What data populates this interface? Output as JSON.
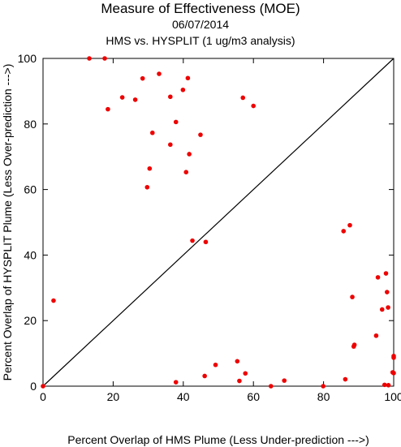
{
  "chart_data": {
    "type": "scatter",
    "title": "Measure of Effectiveness (MOE)",
    "subtitle": "06/07/2014",
    "subtitle2": "HMS vs. HYSPLIT  (1 ug/m3 analysis)",
    "xlabel": "Percent Overlap of HMS Plume (Less Under-prediction --->)",
    "ylabel": "Percent Overlap of HYSPLIT Plume (Less Over-prediction --->)",
    "xlim": [
      0,
      100
    ],
    "ylim": [
      0,
      100
    ],
    "xticks": [
      "0",
      "20",
      "40",
      "60",
      "80",
      "100"
    ],
    "yticks": [
      "0",
      "20",
      "40",
      "60",
      "80",
      "100"
    ],
    "grid": false,
    "legend": "none",
    "diagonal": true,
    "colors": {
      "points": "#ee0000",
      "line": "#000000"
    },
    "points": [
      {
        "x": 0.0,
        "y": 0.0
      },
      {
        "x": 3.0,
        "y": 26.1
      },
      {
        "x": 13.2,
        "y": 100.0
      },
      {
        "x": 17.6,
        "y": 100.0
      },
      {
        "x": 18.5,
        "y": 84.5
      },
      {
        "x": 22.6,
        "y": 88.1
      },
      {
        "x": 26.3,
        "y": 87.4
      },
      {
        "x": 28.4,
        "y": 93.9
      },
      {
        "x": 29.7,
        "y": 60.7
      },
      {
        "x": 30.4,
        "y": 66.4
      },
      {
        "x": 31.2,
        "y": 77.3
      },
      {
        "x": 33.1,
        "y": 95.3
      },
      {
        "x": 36.3,
        "y": 73.7
      },
      {
        "x": 36.3,
        "y": 88.3
      },
      {
        "x": 37.9,
        "y": 80.6
      },
      {
        "x": 37.9,
        "y": 1.2
      },
      {
        "x": 39.9,
        "y": 90.4
      },
      {
        "x": 40.8,
        "y": 65.3
      },
      {
        "x": 41.3,
        "y": 94.0
      },
      {
        "x": 41.7,
        "y": 70.8
      },
      {
        "x": 42.6,
        "y": 44.4
      },
      {
        "x": 44.9,
        "y": 76.7
      },
      {
        "x": 46.1,
        "y": 3.1
      },
      {
        "x": 46.4,
        "y": 44.0
      },
      {
        "x": 49.2,
        "y": 6.5
      },
      {
        "x": 55.4,
        "y": 7.6
      },
      {
        "x": 56.0,
        "y": 1.6
      },
      {
        "x": 57.0,
        "y": 88.0
      },
      {
        "x": 57.7,
        "y": 3.9
      },
      {
        "x": 60.0,
        "y": 85.5
      },
      {
        "x": 65.0,
        "y": 0.0
      },
      {
        "x": 68.8,
        "y": 1.7
      },
      {
        "x": 79.9,
        "y": 0.0
      },
      {
        "x": 85.7,
        "y": 47.3
      },
      {
        "x": 86.2,
        "y": 2.1
      },
      {
        "x": 87.5,
        "y": 49.1
      },
      {
        "x": 88.2,
        "y": 27.2
      },
      {
        "x": 88.6,
        "y": 12.1
      },
      {
        "x": 88.8,
        "y": 12.6
      },
      {
        "x": 95.0,
        "y": 15.4
      },
      {
        "x": 95.5,
        "y": 33.2
      },
      {
        "x": 96.7,
        "y": 23.4
      },
      {
        "x": 97.4,
        "y": 0.4
      },
      {
        "x": 97.8,
        "y": 34.4
      },
      {
        "x": 98.1,
        "y": 28.7
      },
      {
        "x": 98.4,
        "y": 24.0
      },
      {
        "x": 98.5,
        "y": 0.3
      },
      {
        "x": 99.7,
        "y": 4.2
      },
      {
        "x": 100.0,
        "y": 4.0
      },
      {
        "x": 100.0,
        "y": 8.7
      },
      {
        "x": 100.0,
        "y": 9.2
      }
    ]
  }
}
